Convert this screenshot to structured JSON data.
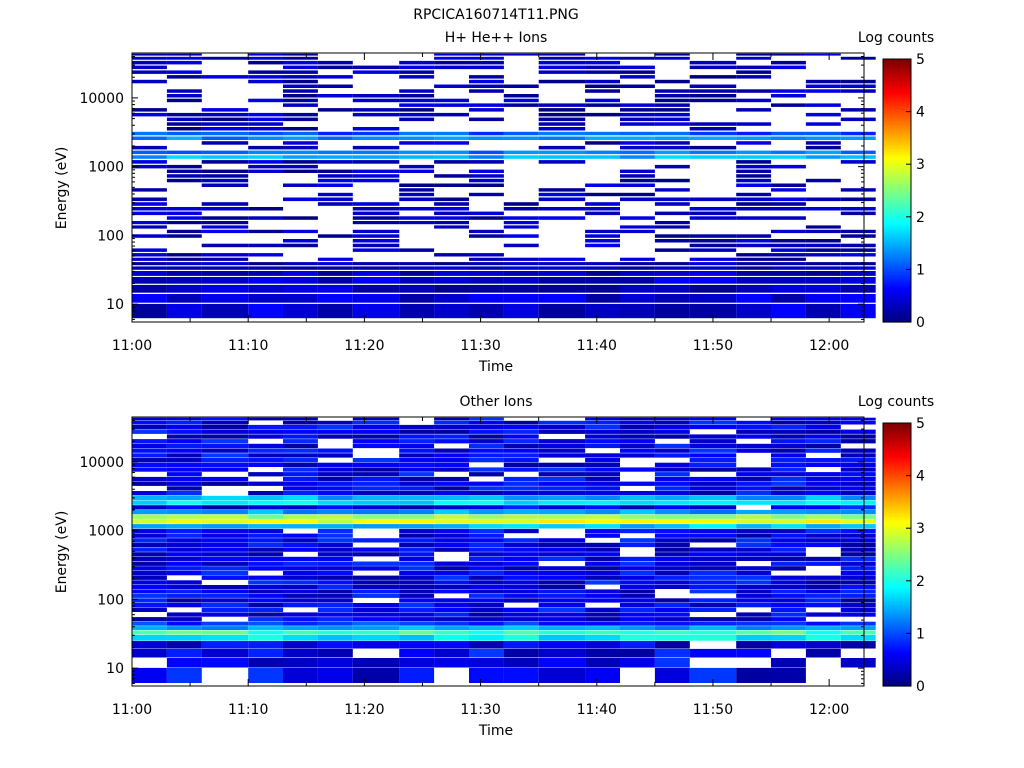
{
  "figure": {
    "title": "RPCICA160714T11.PNG"
  },
  "chart_data": [
    {
      "type": "heatmap",
      "title": "H+ He++ Ions",
      "xlabel": "Time",
      "ylabel": "Energy (eV)",
      "colorbar_label": "Log counts",
      "colorbar_ticks": [
        "0",
        "1",
        "2",
        "3",
        "4",
        "5"
      ],
      "colorbar_range": [
        0,
        5
      ],
      "colormap": "jet",
      "x_ticks": [
        "11:00",
        "11:10",
        "11:20",
        "11:30",
        "11:40",
        "11:50",
        "12:00"
      ],
      "x_range": [
        "11:00",
        "12:03"
      ],
      "x_time_bins": [
        "11:00",
        "11:03",
        "11:06",
        "11:10",
        "11:13",
        "11:16",
        "11:19",
        "11:23",
        "11:26",
        "11:29",
        "11:32",
        "11:35",
        "11:39",
        "11:42",
        "11:45",
        "11:48",
        "11:52",
        "11:55",
        "11:58",
        "12:01"
      ],
      "y_ticks": [
        "10",
        "100",
        "1000",
        "10000"
      ],
      "y_scale": "log",
      "y_range": [
        5.5,
        45000
      ],
      "y_energy_bins": [
        8.5,
        12,
        16.5,
        22,
        28,
        33,
        38,
        44,
        51,
        60,
        70,
        82,
        96,
        112,
        130,
        150,
        175,
        205,
        240,
        280,
        330,
        385,
        450,
        525,
        615,
        720,
        840,
        980,
        1150,
        1350,
        1580,
        1850,
        2170,
        2540,
        2970,
        3480,
        4080,
        4780,
        5600,
        6560,
        7680,
        9000,
        10540,
        12350,
        14460,
        16940,
        19840,
        23240,
        27220,
        31890,
        37350,
        42000
      ],
      "band_values_log_counts": {
        "8.5": 0.4,
        "12": 0.4,
        "16.5": 0.3,
        "22": 0.4,
        "28": 0.3,
        "33": 0.3,
        "38": 0.2,
        "1350": 1.5,
        "1580": 1.2,
        "2540": 1.3,
        "2970": 1.0
      },
      "cells_note_visible": "Remaining bins show sparse low counts (0-0.6) with many empty (white) cells"
    },
    {
      "type": "heatmap",
      "title": "Other Ions",
      "xlabel": "Time",
      "ylabel": "Energy (eV)",
      "colorbar_label": "Log counts",
      "colorbar_ticks": [
        "0",
        "1",
        "2",
        "3",
        "4",
        "5"
      ],
      "colorbar_range": [
        0,
        5
      ],
      "colormap": "jet",
      "x_ticks": [
        "11:00",
        "11:10",
        "11:20",
        "11:30",
        "11:40",
        "11:50",
        "12:00"
      ],
      "x_range": [
        "11:00",
        "12:03"
      ],
      "x_time_bins": [
        "11:00",
        "11:03",
        "11:06",
        "11:10",
        "11:13",
        "11:16",
        "11:19",
        "11:23",
        "11:26",
        "11:29",
        "11:32",
        "11:35",
        "11:39",
        "11:42",
        "11:45",
        "11:48",
        "11:52",
        "11:55",
        "11:58",
        "12:01"
      ],
      "y_ticks": [
        "10",
        "100",
        "1000",
        "10000"
      ],
      "y_scale": "log",
      "y_range": [
        5.5,
        45000
      ],
      "y_energy_bins": [
        8.5,
        12,
        16.5,
        22,
        28,
        33,
        38,
        44,
        51,
        60,
        70,
        82,
        96,
        112,
        130,
        150,
        175,
        205,
        240,
        280,
        330,
        385,
        450,
        525,
        615,
        720,
        840,
        980,
        1150,
        1350,
        1580,
        1850,
        2170,
        2540,
        2970,
        3480,
        4080,
        4780,
        5600,
        6560,
        7680,
        9000,
        10540,
        12350,
        14460,
        16940,
        19840,
        23240,
        27220,
        31890,
        37350,
        42000
      ],
      "band_values_log_counts": {
        "28": 1.8,
        "33": 2.2,
        "38": 1.4,
        "44": 0.9,
        "1150": 1.6,
        "1350": 3.0,
        "1580": 2.6,
        "1850": 1.4,
        "2540": 1.7,
        "2970": 1.5
      },
      "cells_note_visible": "Remaining bins mostly 0.2-0.9 log counts with scattered empty (white) cells"
    }
  ]
}
